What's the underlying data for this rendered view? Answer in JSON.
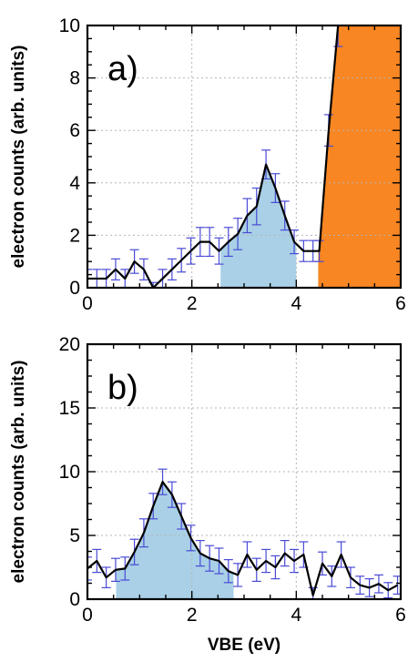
{
  "chart_data": [
    {
      "type": "line",
      "panel_label": "a)",
      "xlabel": "",
      "ylabel": "electron counts (arb. units)",
      "xlim": [
        0,
        6
      ],
      "ylim": [
        0,
        10
      ],
      "xticks": [
        "0",
        "2",
        "4",
        "6"
      ],
      "yticks": [
        "0",
        "2",
        "4",
        "6",
        "8",
        "10"
      ],
      "grid": true,
      "series": [
        {
          "x": [
            0,
            0.18,
            0.36,
            0.54,
            0.72,
            0.9,
            1.08,
            1.26,
            1.44,
            1.62,
            1.8,
            1.98,
            2.16,
            2.34,
            2.52,
            2.7,
            2.88,
            3.06,
            3.24,
            3.42,
            3.6,
            3.78,
            3.96,
            4.14,
            4.32,
            4.44,
            4.62,
            4.8
          ],
          "y": [
            0.35,
            0.35,
            0.35,
            0.7,
            0.35,
            1.0,
            0.7,
            0.0,
            0.35,
            0.7,
            1.05,
            1.4,
            1.75,
            1.75,
            1.4,
            1.75,
            2.05,
            2.75,
            3.1,
            4.7,
            3.8,
            2.75,
            1.75,
            1.4,
            1.4,
            1.4,
            6.0,
            10.0
          ],
          "yerr": [
            0.35,
            0.35,
            0.35,
            0.4,
            0.35,
            0.45,
            0.4,
            0.2,
            0.35,
            0.4,
            0.45,
            0.5,
            0.55,
            0.55,
            0.5,
            0.55,
            0.6,
            0.65,
            0.7,
            0.55,
            0.55,
            0.55,
            0.45,
            0.4,
            0.4,
            0.4,
            0.6,
            0.8
          ]
        }
      ],
      "shaded_regions": [
        {
          "x_start": 2.55,
          "x_end": 4.0,
          "color": "#a9d0e6"
        },
        {
          "x_start": 4.42,
          "x_end": 6.0,
          "color": "#f78623"
        }
      ],
      "colors": {
        "line": "#000000",
        "error_bars": "#4a4ad6"
      }
    },
    {
      "type": "line",
      "panel_label": "b)",
      "xlabel": "VBE (eV)",
      "ylabel": "electron counts (arb. units)",
      "xlim": [
        0,
        6
      ],
      "ylim": [
        0,
        20
      ],
      "xticks": [
        "0",
        "2",
        "4",
        "6"
      ],
      "yticks": [
        "0",
        "5",
        "10",
        "15",
        "20"
      ],
      "grid": true,
      "series": [
        {
          "x": [
            0,
            0.18,
            0.36,
            0.54,
            0.72,
            0.9,
            1.08,
            1.26,
            1.44,
            1.62,
            1.8,
            1.98,
            2.16,
            2.34,
            2.52,
            2.7,
            2.88,
            3.06,
            3.24,
            3.42,
            3.6,
            3.78,
            3.96,
            4.14,
            4.32,
            4.5,
            4.68,
            4.86,
            5.04,
            5.22,
            5.4,
            5.58,
            5.76,
            5.94
          ],
          "y": [
            2.4,
            3.0,
            1.7,
            2.3,
            2.4,
            3.7,
            5.2,
            7.3,
            9.2,
            8.2,
            6.5,
            4.8,
            3.6,
            3.2,
            3.0,
            2.2,
            1.9,
            3.5,
            2.3,
            3.0,
            2.5,
            3.6,
            3.0,
            3.5,
            0.3,
            2.8,
            1.8,
            3.5,
            1.7,
            1.1,
            0.9,
            1.2,
            0.7,
            1.1
          ],
          "yerr": [
            0.9,
            0.9,
            0.8,
            0.9,
            0.9,
            1.0,
            1.1,
            1.0,
            1.0,
            1.0,
            1.0,
            1.0,
            1.0,
            1.0,
            1.0,
            0.9,
            0.9,
            1.0,
            0.9,
            0.9,
            0.9,
            1.0,
            0.9,
            1.0,
            0.6,
            0.9,
            0.8,
            1.0,
            0.8,
            0.7,
            0.7,
            0.7,
            0.6,
            0.7
          ]
        }
      ],
      "shaded_regions": [
        {
          "x_start": 0.55,
          "x_end": 2.8,
          "color": "#a9d0e6"
        }
      ],
      "colors": {
        "line": "#000000",
        "error_bars": "#4a4ad6"
      }
    }
  ]
}
